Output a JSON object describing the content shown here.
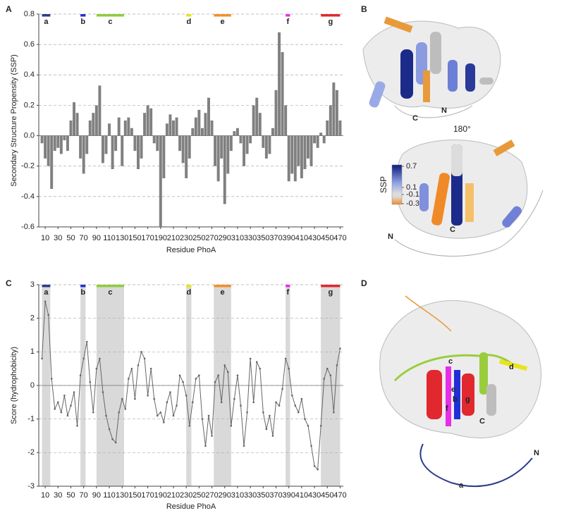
{
  "panel_labels": [
    "A",
    "B",
    "C",
    "D"
  ],
  "chart_data": [
    {
      "type": "bar",
      "ylabel": "Secondary Structure Propensity (SSP)",
      "xlabel": "Residue PhoA",
      "color": "#808080",
      "xlim": [
        0,
        475
      ],
      "ylim": [
        -0.6,
        0.8
      ],
      "xticks": [
        10,
        30,
        50,
        70,
        90,
        110,
        130,
        150,
        170,
        190,
        210,
        230,
        250,
        270,
        290,
        310,
        330,
        350,
        370,
        390,
        410,
        430,
        450,
        470
      ],
      "yticks": [
        0.8,
        0.6,
        0.4,
        0.2,
        {
          "value": 0,
          "label": "0.0"
        },
        -0.2,
        -0.4,
        -0.6
      ],
      "grid": true,
      "shade_regions": false,
      "regions": [
        {
          "label": "a",
          "start": 5,
          "end": 18,
          "color": "#2b3a8c"
        },
        {
          "label": "b",
          "start": 65,
          "end": 73,
          "color": "#1f2fd6"
        },
        {
          "label": "c",
          "start": 90,
          "end": 133,
          "color": "#8fcc3c"
        },
        {
          "label": "d",
          "start": 230,
          "end": 238,
          "color": "#e8e41a"
        },
        {
          "label": "e",
          "start": 273,
          "end": 300,
          "color": "#f2902a"
        },
        {
          "label": "f",
          "start": 385,
          "end": 392,
          "color": "#e62ee6"
        },
        {
          "label": "g",
          "start": 440,
          "end": 470,
          "color": "#e0282e"
        }
      ],
      "x": [
        5,
        10,
        15,
        20,
        25,
        30,
        35,
        40,
        45,
        50,
        55,
        60,
        65,
        70,
        75,
        80,
        85,
        90,
        95,
        100,
        105,
        110,
        115,
        120,
        125,
        130,
        135,
        140,
        145,
        150,
        155,
        160,
        165,
        170,
        175,
        180,
        185,
        190,
        195,
        200,
        205,
        210,
        215,
        220,
        225,
        230,
        235,
        240,
        245,
        250,
        255,
        260,
        265,
        270,
        275,
        280,
        285,
        290,
        295,
        300,
        305,
        310,
        315,
        320,
        325,
        330,
        335,
        340,
        345,
        350,
        355,
        360,
        365,
        370,
        375,
        380,
        385,
        390,
        395,
        400,
        405,
        410,
        415,
        420,
        425,
        430,
        435,
        440,
        445,
        450,
        455,
        460,
        465,
        470
      ],
      "values": [
        -0.05,
        -0.15,
        -0.2,
        -0.35,
        -0.1,
        -0.08,
        -0.12,
        -0.03,
        -0.1,
        0.1,
        0.22,
        0.15,
        -0.15,
        -0.25,
        -0.12,
        0.1,
        0.15,
        0.2,
        0.33,
        -0.18,
        -0.12,
        0.08,
        -0.22,
        -0.1,
        0.12,
        -0.2,
        0.1,
        0.12,
        0.05,
        -0.1,
        -0.22,
        -0.15,
        0.15,
        0.2,
        0.18,
        -0.05,
        -0.1,
        -0.6,
        -0.28,
        0.08,
        0.14,
        0.1,
        0.12,
        -0.1,
        -0.18,
        -0.28,
        -0.15,
        0.05,
        0.12,
        0.17,
        0.05,
        0.15,
        0.25,
        0.1,
        -0.2,
        -0.3,
        -0.15,
        -0.45,
        -0.25,
        -0.1,
        0.03,
        0.05,
        -0.05,
        -0.2,
        -0.12,
        -0.05,
        0.2,
        0.25,
        0.15,
        -0.08,
        -0.15,
        -0.12,
        0.05,
        0.3,
        0.68,
        0.55,
        0.2,
        -0.3,
        -0.25,
        -0.3,
        -0.2,
        -0.28,
        -0.22,
        -0.15,
        -0.2,
        -0.05,
        -0.08,
        0.02,
        -0.05,
        0.1,
        0.2,
        0.35,
        0.3,
        0.1
      ]
    },
    {
      "type": "line",
      "ylabel": "Score (hydrophobicity)",
      "xlabel": "Residue PhoA",
      "color": "#666666",
      "xlim": [
        0,
        475
      ],
      "ylim": [
        -3,
        3
      ],
      "xticks": [
        10,
        30,
        50,
        70,
        90,
        110,
        130,
        150,
        170,
        190,
        210,
        230,
        250,
        270,
        290,
        310,
        330,
        350,
        370,
        390,
        410,
        430,
        450,
        470
      ],
      "yticks": [
        3,
        2,
        1,
        0,
        -1,
        -2,
        -3
      ],
      "grid": true,
      "shade_regions": true,
      "regions": [
        {
          "label": "a",
          "start": 5,
          "end": 18,
          "color": "#2b3a8c"
        },
        {
          "label": "b",
          "start": 65,
          "end": 73,
          "color": "#1f2fd6"
        },
        {
          "label": "c",
          "start": 90,
          "end": 133,
          "color": "#8fcc3c"
        },
        {
          "label": "d",
          "start": 230,
          "end": 238,
          "color": "#e8e41a"
        },
        {
          "label": "e",
          "start": 273,
          "end": 300,
          "color": "#f2902a"
        },
        {
          "label": "f",
          "start": 385,
          "end": 392,
          "color": "#e62ee6"
        },
        {
          "label": "g",
          "start": 440,
          "end": 470,
          "color": "#e0282e"
        }
      ],
      "x": [
        5,
        10,
        15,
        20,
        25,
        30,
        35,
        40,
        45,
        50,
        55,
        60,
        65,
        70,
        75,
        80,
        85,
        90,
        95,
        100,
        105,
        110,
        115,
        120,
        125,
        130,
        135,
        140,
        145,
        150,
        155,
        160,
        165,
        170,
        175,
        180,
        185,
        190,
        195,
        200,
        205,
        210,
        215,
        220,
        225,
        230,
        235,
        240,
        245,
        250,
        255,
        260,
        265,
        270,
        275,
        280,
        285,
        290,
        295,
        300,
        305,
        310,
        315,
        320,
        325,
        330,
        335,
        340,
        345,
        350,
        355,
        360,
        365,
        370,
        375,
        380,
        385,
        390,
        395,
        400,
        405,
        410,
        415,
        420,
        425,
        430,
        435,
        440,
        445,
        450,
        455,
        460,
        465,
        470
      ],
      "values": [
        0.8,
        2.5,
        2.1,
        0.2,
        -0.7,
        -0.5,
        -0.8,
        -0.3,
        -0.9,
        -0.6,
        -0.2,
        -1.2,
        0.3,
        0.8,
        1.3,
        0.1,
        -0.8,
        0.5,
        0.8,
        -0.2,
        -0.9,
        -1.3,
        -1.6,
        -1.7,
        -0.8,
        -0.4,
        -0.7,
        0.2,
        0.5,
        -0.4,
        0.6,
        1.0,
        0.8,
        -0.3,
        0.5,
        -0.4,
        -0.9,
        -0.8,
        -1.1,
        -0.5,
        -0.2,
        -0.9,
        -0.6,
        0.3,
        0.1,
        -0.3,
        -1.2,
        -0.5,
        0.2,
        0.3,
        -1.0,
        -1.8,
        -0.9,
        -1.5,
        0.1,
        0.3,
        -0.5,
        0.6,
        0.4,
        -1.2,
        -0.4,
        0.3,
        -0.6,
        -1.8,
        -0.8,
        0.8,
        -0.5,
        0.7,
        0.5,
        -0.8,
        -1.3,
        -0.9,
        -1.5,
        -0.5,
        -0.6,
        -0.1,
        0.8,
        0.5,
        -0.3,
        -0.6,
        -0.8,
        -0.4,
        -1.0,
        -1.2,
        -1.8,
        -2.4,
        -2.5,
        -1.2,
        0.2,
        0.5,
        0.3,
        -0.8,
        0.6,
        1.1
      ]
    }
  ],
  "structure_b": {
    "rotation": "180°",
    "colorbar": {
      "label": "SSP",
      "ticks": [
        0.7,
        0.1,
        -0.1,
        -0.3
      ]
    },
    "top_labels": [
      "C",
      "N"
    ],
    "bottom_labels": [
      "C",
      "N"
    ]
  },
  "structure_d": {
    "labels": [
      "a",
      "b",
      "c",
      "d",
      "e",
      "f",
      "g",
      "C",
      "N"
    ]
  }
}
